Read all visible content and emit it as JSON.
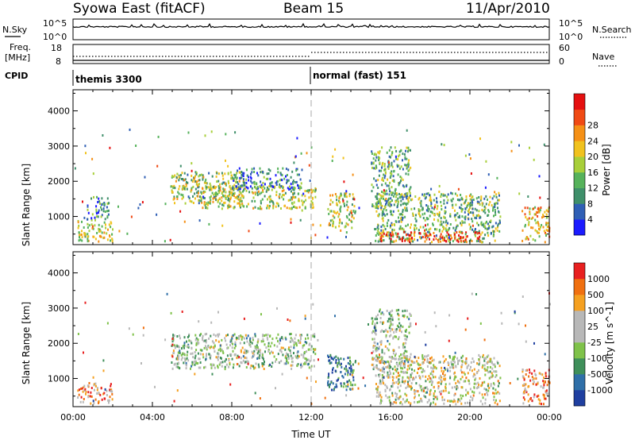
{
  "header": {
    "title": "Syowa East (fitACF)",
    "beam": "Beam 15",
    "date": "11/Apr/2010"
  },
  "top_panels": {
    "nsky_label": "N.Sky",
    "nsky_ticks": [
      "10^5",
      "10^0"
    ],
    "nsearch_label": "N.Search",
    "nsearch_ticks": [
      "10^5",
      "10^0"
    ],
    "freq_label_1": "Freq.",
    "freq_label_2": "[MHz]",
    "freq_ticks": [
      "18",
      "8"
    ],
    "nave_label": "Nave",
    "nave_ticks": [
      "60",
      "0"
    ],
    "cpid_label": "CPID",
    "cpid_entries": [
      {
        "name": "themis 3300",
        "start_hour": 0
      },
      {
        "name": "normal (fast) 151",
        "start_hour": 12
      }
    ]
  },
  "chart_data": [
    {
      "type": "heatmap",
      "name": "power-panel",
      "xlabel": "",
      "ylabel": "Slant Range [km]",
      "xlim": [
        0,
        24
      ],
      "ylim": [
        200,
        4600
      ],
      "y_ticks": [
        "1000",
        "2000",
        "3000",
        "4000"
      ],
      "colorbar_label": "Power [dB]",
      "colorbar_ticks": [
        "4",
        "8",
        "12",
        "16",
        "20",
        "24",
        "28"
      ],
      "colorbar_colors": [
        "#1b1bff",
        "#2f5fb5",
        "#3f8f6a",
        "#56b25b",
        "#a8cf3a",
        "#f1c21e",
        "#f59016",
        "#f04a14",
        "#e51010"
      ],
      "regions": [
        {
          "t0": 0.2,
          "t1": 2.0,
          "r0": 300,
          "r1": 900,
          "level": 0.55
        },
        {
          "t0": 0.6,
          "t1": 1.8,
          "r0": 900,
          "r1": 1600,
          "level": 0.3
        },
        {
          "t0": 4.9,
          "t1": 8.6,
          "r0": 1400,
          "r1": 2300,
          "level": 0.45
        },
        {
          "t0": 6.4,
          "t1": 12.2,
          "r0": 1250,
          "r1": 1900,
          "level": 0.5
        },
        {
          "t0": 8.0,
          "t1": 11.5,
          "r0": 1800,
          "r1": 2400,
          "level": 0.25
        },
        {
          "t0": 12.8,
          "t1": 14.2,
          "r0": 700,
          "r1": 1700,
          "level": 0.5
        },
        {
          "t0": 15.0,
          "t1": 17.0,
          "r0": 1300,
          "r1": 3000,
          "level": 0.35
        },
        {
          "t0": 15.2,
          "t1": 21.5,
          "r0": 300,
          "r1": 1700,
          "level": 0.4
        },
        {
          "t0": 15.4,
          "t1": 20.5,
          "r0": 300,
          "r1": 600,
          "level": 0.9
        },
        {
          "t0": 22.6,
          "t1": 24.0,
          "r0": 300,
          "r1": 1300,
          "level": 0.6
        }
      ]
    },
    {
      "type": "heatmap",
      "name": "velocity-panel",
      "xlabel": "Time UT",
      "ylabel": "Slant Range [km]",
      "xlim": [
        0,
        24
      ],
      "ylim": [
        200,
        4600
      ],
      "x_ticks": [
        "00:00",
        "04:00",
        "08:00",
        "12:00",
        "16:00",
        "20:00",
        "00:00"
      ],
      "y_ticks": [
        "1000",
        "2000",
        "3000",
        "4000"
      ],
      "colorbar_label": "Velocity [m s^-1]",
      "colorbar_ticks": [
        "1000",
        "500",
        "100",
        "25",
        "-25",
        "-100",
        "-500",
        "-1000"
      ],
      "colorbar_colors": [
        "#1f3fa0",
        "#2f6fa8",
        "#3f8f5a",
        "#7fc24a",
        "#b8b8b8",
        "#b8b8b8",
        "#f5a020",
        "#f07010",
        "#e82020"
      ],
      "regions": [
        {
          "t0": 0.2,
          "t1": 2.0,
          "r0": 300,
          "r1": 900,
          "level": 0.75
        },
        {
          "t0": 4.9,
          "t1": 12.2,
          "r0": 1300,
          "r1": 2300,
          "level": 0.45
        },
        {
          "t0": 12.8,
          "t1": 14.2,
          "r0": 700,
          "r1": 1700,
          "level": 0.15
        },
        {
          "t0": 15.0,
          "t1": 17.0,
          "r0": 1300,
          "r1": 3000,
          "level": 0.45
        },
        {
          "t0": 15.2,
          "t1": 21.5,
          "r0": 300,
          "r1": 1700,
          "level": 0.55
        },
        {
          "t0": 22.6,
          "t1": 24.0,
          "r0": 300,
          "r1": 1300,
          "level": 0.8
        }
      ]
    }
  ]
}
